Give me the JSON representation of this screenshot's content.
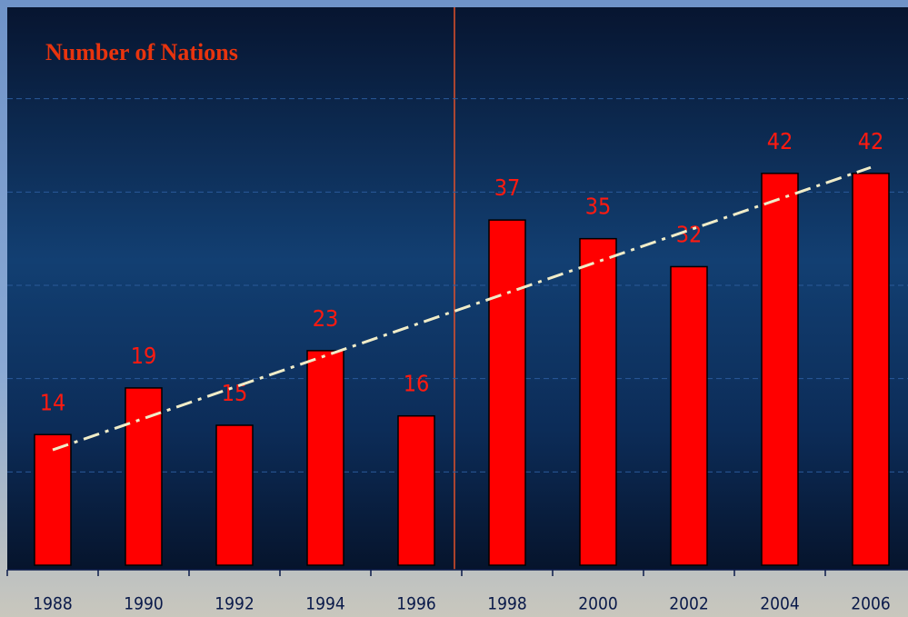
{
  "chart_data": {
    "type": "bar",
    "title": "Number of Nations",
    "categories": [
      "1988",
      "1990",
      "1992",
      "1994",
      "1996",
      "1998",
      "2000",
      "2002",
      "2004",
      "2006"
    ],
    "values": [
      14,
      19,
      15,
      23,
      16,
      37,
      35,
      32,
      42,
      42
    ],
    "color": "#ff0000",
    "ylim": [
      0,
      60
    ],
    "yticks": [
      10,
      20,
      30,
      40,
      50
    ],
    "grid": true,
    "trendline": true
  }
}
